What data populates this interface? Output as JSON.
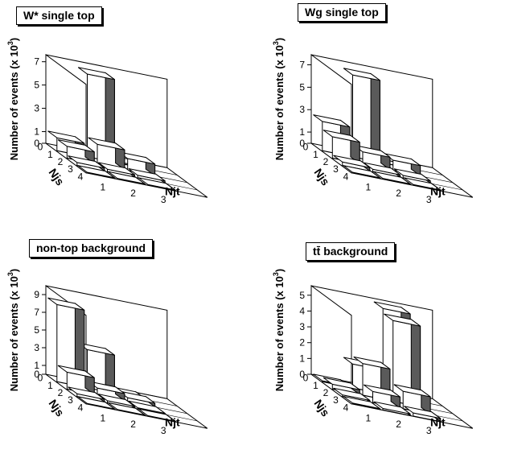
{
  "panels": [
    {
      "title": "W* single top",
      "ylabel": "Number of events (x 10",
      "yexp": "3",
      "ylabel_end": ")",
      "y_ticks": [
        "0",
        "1",
        "3",
        "5",
        "7"
      ],
      "x_label": "Njt",
      "x_ticks": [
        "1",
        "2",
        "3"
      ],
      "z_label": "Njs",
      "z_ticks": [
        "0",
        "1",
        "2",
        "3",
        "4"
      ]
    },
    {
      "title": "Wg single top",
      "ylabel": "Number of events (x 10",
      "yexp": "3",
      "ylabel_end": ")",
      "y_ticks": [
        "0",
        "1",
        "3",
        "5",
        "7"
      ],
      "x_label": "Njt",
      "x_ticks": [
        "1",
        "2",
        "3"
      ],
      "z_label": "Njs",
      "z_ticks": [
        "0",
        "1",
        "2",
        "3",
        "4"
      ]
    },
    {
      "title": "non-top background",
      "ylabel": "Number of events (x 10",
      "yexp": "3",
      "ylabel_end": ")",
      "y_ticks": [
        "0",
        "1",
        "3",
        "5",
        "7",
        "9"
      ],
      "x_label": "Njt",
      "x_ticks": [
        "1",
        "2",
        "3"
      ],
      "z_label": "Njs",
      "z_ticks": [
        "0",
        "1",
        "2",
        "3",
        "4"
      ]
    },
    {
      "title": "tt̄ background",
      "ylabel": "Number of events (x 10",
      "yexp": "3",
      "ylabel_end": ")",
      "y_ticks": [
        "0",
        "1",
        "2",
        "3",
        "4",
        "5"
      ],
      "x_label": "Njt",
      "x_ticks": [
        "1",
        "2",
        "3"
      ],
      "z_label": "Njs",
      "z_ticks": [
        "0",
        "1",
        "2",
        "3",
        "4"
      ]
    }
  ],
  "chart_data": [
    {
      "type": "lego3d",
      "title": "W* single top",
      "xlabel": "Njt",
      "zlabel": "Njs",
      "ylabel": "Number of events (x 10^3)",
      "x_categories": [
        "1",
        "2",
        "3"
      ],
      "z_categories": [
        "0",
        "1",
        "2",
        "3"
      ],
      "ylim": [
        0,
        7.6
      ],
      "values": [
        [
          1.1,
          7.1,
          0.1
        ],
        [
          1.0,
          1.7,
          1.0
        ],
        [
          0.25,
          0.2,
          0.2
        ],
        [
          0.05,
          0.05,
          0.05
        ]
      ],
      "colors": {
        "front": "#ffffff",
        "side": "#5a5a5a",
        "top": "#ffffff"
      }
    },
    {
      "type": "lego3d",
      "title": "Wg single top",
      "xlabel": "Njt",
      "zlabel": "Njs",
      "ylabel": "Number of events (x 10^3)",
      "x_categories": [
        "1",
        "2",
        "3"
      ],
      "z_categories": [
        "0",
        "1",
        "2",
        "3"
      ],
      "ylim": [
        0,
        7.9
      ],
      "values": [
        [
          2.6,
          7.3,
          0.3
        ],
        [
          1.9,
          1.1,
          0.9
        ],
        [
          0.3,
          0.2,
          0.2
        ],
        [
          0.05,
          0.05,
          0.05
        ]
      ],
      "colors": {
        "front": "#ffffff",
        "side": "#5a5a5a",
        "top": "#ffffff"
      }
    },
    {
      "type": "lego3d",
      "title": "non-top background",
      "xlabel": "Njt",
      "zlabel": "Njs",
      "ylabel": "Number of events (x 10^3)",
      "x_categories": [
        "1",
        "2",
        "3"
      ],
      "z_categories": [
        "0",
        "1",
        "2",
        "3"
      ],
      "ylim": [
        0,
        10
      ],
      "values": [
        [
          8.7,
          4.3,
          0.1
        ],
        [
          1.9,
          0.8,
          0.4
        ],
        [
          0.3,
          0.2,
          0.1
        ],
        [
          0.05,
          0.05,
          0.05
        ]
      ],
      "colors": {
        "front": "#ffffff",
        "side": "#5a5a5a",
        "top": "#ffffff"
      }
    },
    {
      "type": "lego3d",
      "title": "tt̄ background",
      "xlabel": "Njt",
      "zlabel": "Njs",
      "ylabel": "Number of events (x 10^3)",
      "x_categories": [
        "1",
        "2",
        "3"
      ],
      "z_categories": [
        "0",
        "1",
        "2",
        "3"
      ],
      "ylim": [
        0,
        5.6
      ],
      "values": [
        [
          0.05,
          1.5,
          5.4
        ],
        [
          0.3,
          2.0,
          5.1
        ],
        [
          0.1,
          0.7,
          1.1
        ],
        [
          0.05,
          0.1,
          0.2
        ]
      ],
      "colors": {
        "front": "#ffffff",
        "side": "#5a5a5a",
        "top": "#ffffff"
      }
    }
  ]
}
